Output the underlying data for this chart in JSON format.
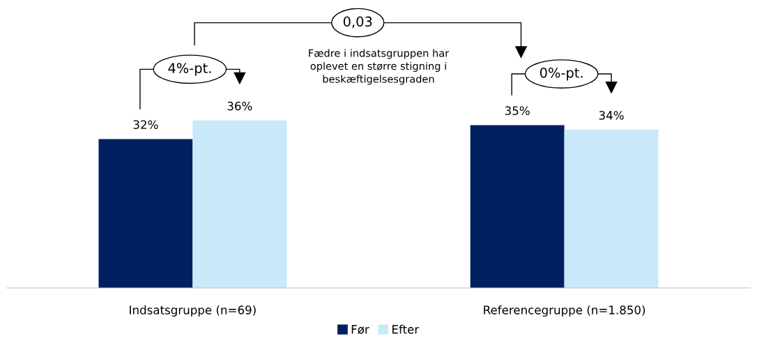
{
  "chart_data": {
    "type": "bar",
    "categories": [
      "Indsatsgruppe (n=69)",
      "Referencegruppe (n=1.850)"
    ],
    "series": [
      {
        "name": "Før",
        "color": "#002060",
        "values": [
          32,
          35
        ],
        "value_labels": [
          "32%",
          "35%"
        ]
      },
      {
        "name": "Efter",
        "color": "#c9e9fb",
        "values": [
          36,
          34
        ],
        "value_labels": [
          "36%",
          "34%"
        ]
      }
    ],
    "grid": false,
    "legend": "bottom",
    "tick_labels": "x",
    "annotations": [
      "4%-pt.",
      "0%-pt.",
      "0,03",
      "Fædre i indsatsgruppen har oplevet en større stigning i beskæftigelsesgraden"
    ]
  }
}
